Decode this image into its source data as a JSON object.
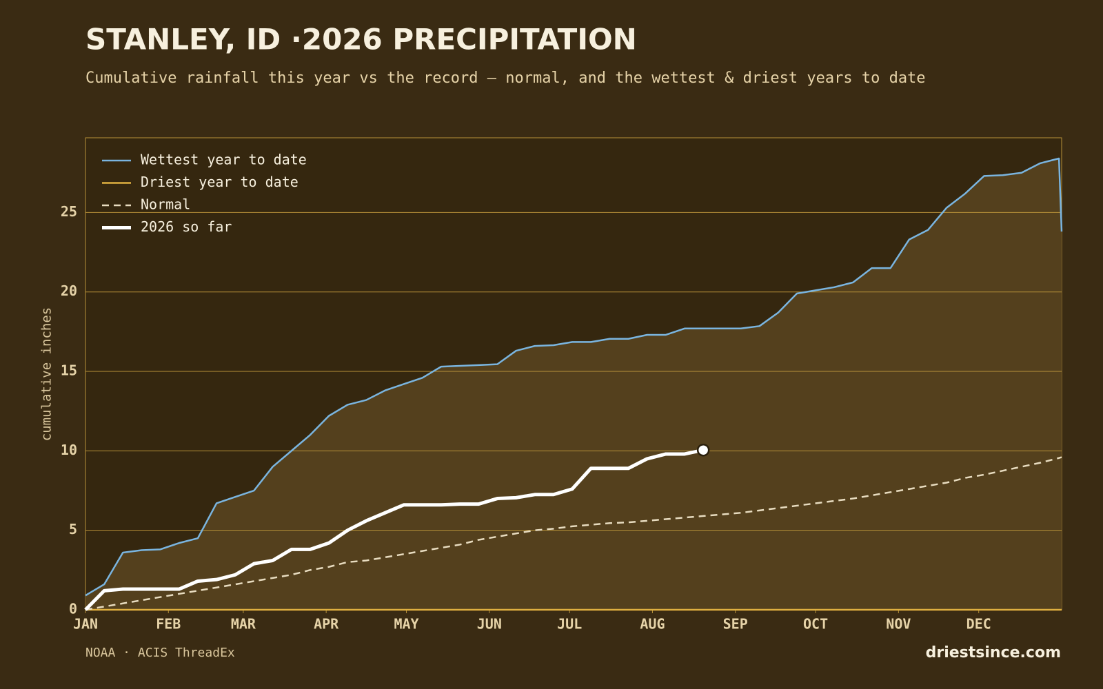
{
  "chart_data": {
    "type": "line",
    "title": "STANLEY, ID ·2026 PRECIPITATION",
    "subtitle": "Cumulative rainfall this year vs the record — normal, and the wettest & driest years to date",
    "ylabel": "cumulative inches",
    "source": "NOAA · ACIS ThreadEx",
    "brand": "driestsince.com",
    "legend": "upper left",
    "grid": true,
    "xlim": [
      0,
      365
    ],
    "ylim": [
      0,
      29.7
    ],
    "yticks": [
      0,
      5,
      10,
      15,
      20,
      25
    ],
    "xticks": [
      {
        "value": 0,
        "label": "JAN"
      },
      {
        "value": 31,
        "label": "FEB"
      },
      {
        "value": 59,
        "label": "MAR"
      },
      {
        "value": 90,
        "label": "APR"
      },
      {
        "value": 120,
        "label": "MAY"
      },
      {
        "value": 151,
        "label": "JUN"
      },
      {
        "value": 181,
        "label": "JUL"
      },
      {
        "value": 212,
        "label": "AUG"
      },
      {
        "value": 243,
        "label": "SEP"
      },
      {
        "value": 273,
        "label": "OCT"
      },
      {
        "value": 304,
        "label": "NOV"
      },
      {
        "value": 334,
        "label": "DEC"
      }
    ],
    "x": [
      0,
      7,
      14,
      21,
      28,
      35,
      42,
      49,
      56,
      63,
      70,
      77,
      84,
      91,
      98,
      105,
      112,
      119,
      126,
      133,
      140,
      147,
      154,
      161,
      168,
      175,
      182,
      189,
      196,
      203,
      210,
      217,
      224,
      231,
      238,
      245,
      252,
      259,
      266,
      273,
      280,
      287,
      294,
      301,
      308,
      315,
      322,
      329,
      336,
      343,
      350,
      357,
      364,
      365
    ],
    "series": [
      {
        "name": "Wettest year to date",
        "color": "#7ab5e0",
        "linestyle": "solid",
        "values": [
          0.9,
          1.6,
          3.6,
          3.75,
          3.8,
          4.2,
          4.5,
          6.7,
          7.1,
          7.5,
          9.0,
          10.0,
          11.0,
          12.2,
          12.9,
          13.2,
          13.8,
          14.2,
          14.6,
          15.3,
          15.35,
          15.4,
          15.45,
          16.3,
          16.6,
          16.65,
          16.85,
          16.85,
          17.05,
          17.05,
          17.3,
          17.3,
          17.7,
          17.7,
          17.7,
          17.7,
          17.85,
          18.7,
          19.9,
          20.1,
          20.3,
          20.6,
          21.5,
          21.5,
          23.3,
          23.9,
          25.3,
          26.2,
          27.3,
          27.35,
          27.5,
          28.1,
          28.4,
          23.8
        ]
      },
      {
        "name": "Driest year to date",
        "color": "#e0b040",
        "linestyle": "solid",
        "values": [
          0,
          0,
          0,
          0,
          0,
          0,
          0,
          0,
          0,
          0,
          0,
          0,
          0,
          0,
          0,
          0,
          0,
          0,
          0,
          0,
          0,
          0,
          0,
          0,
          0,
          0,
          0,
          0,
          0,
          0,
          0,
          0,
          0,
          0,
          0,
          0,
          0,
          0,
          0,
          0,
          0,
          0,
          0,
          0,
          0,
          0,
          0,
          0,
          0,
          0,
          0,
          0,
          0,
          0
        ]
      },
      {
        "name": "Normal",
        "color": "#e8dcc0",
        "linestyle": "dashed",
        "values": [
          0,
          0.2,
          0.4,
          0.6,
          0.8,
          1.0,
          1.2,
          1.4,
          1.6,
          1.8,
          2.0,
          2.2,
          2.5,
          2.7,
          3.0,
          3.1,
          3.3,
          3.5,
          3.7,
          3.9,
          4.1,
          4.4,
          4.6,
          4.8,
          5.0,
          5.1,
          5.25,
          5.35,
          5.45,
          5.5,
          5.6,
          5.7,
          5.8,
          5.9,
          6.0,
          6.1,
          6.25,
          6.4,
          6.55,
          6.7,
          6.85,
          7.0,
          7.2,
          7.4,
          7.6,
          7.8,
          8.0,
          8.3,
          8.5,
          8.75,
          9.0,
          9.25,
          9.55,
          9.6
        ]
      },
      {
        "name": "2026 so far",
        "color": "#ffffff",
        "linestyle": "bold",
        "values": [
          0,
          1.2,
          1.3,
          1.3,
          1.3,
          1.3,
          1.8,
          1.9,
          2.2,
          2.9,
          3.1,
          3.8,
          3.8,
          4.2,
          5.0,
          5.6,
          6.1,
          6.6,
          6.6,
          6.6,
          6.65,
          6.65,
          7.0,
          7.05,
          7.25,
          7.25,
          7.6,
          8.9,
          8.9,
          8.9,
          9.5,
          9.8,
          9.8,
          10.05,
          null,
          null,
          null,
          null,
          null,
          null,
          null,
          null,
          null,
          null,
          null,
          null,
          null,
          null,
          null,
          null,
          null,
          null,
          null,
          null
        ]
      }
    ]
  }
}
